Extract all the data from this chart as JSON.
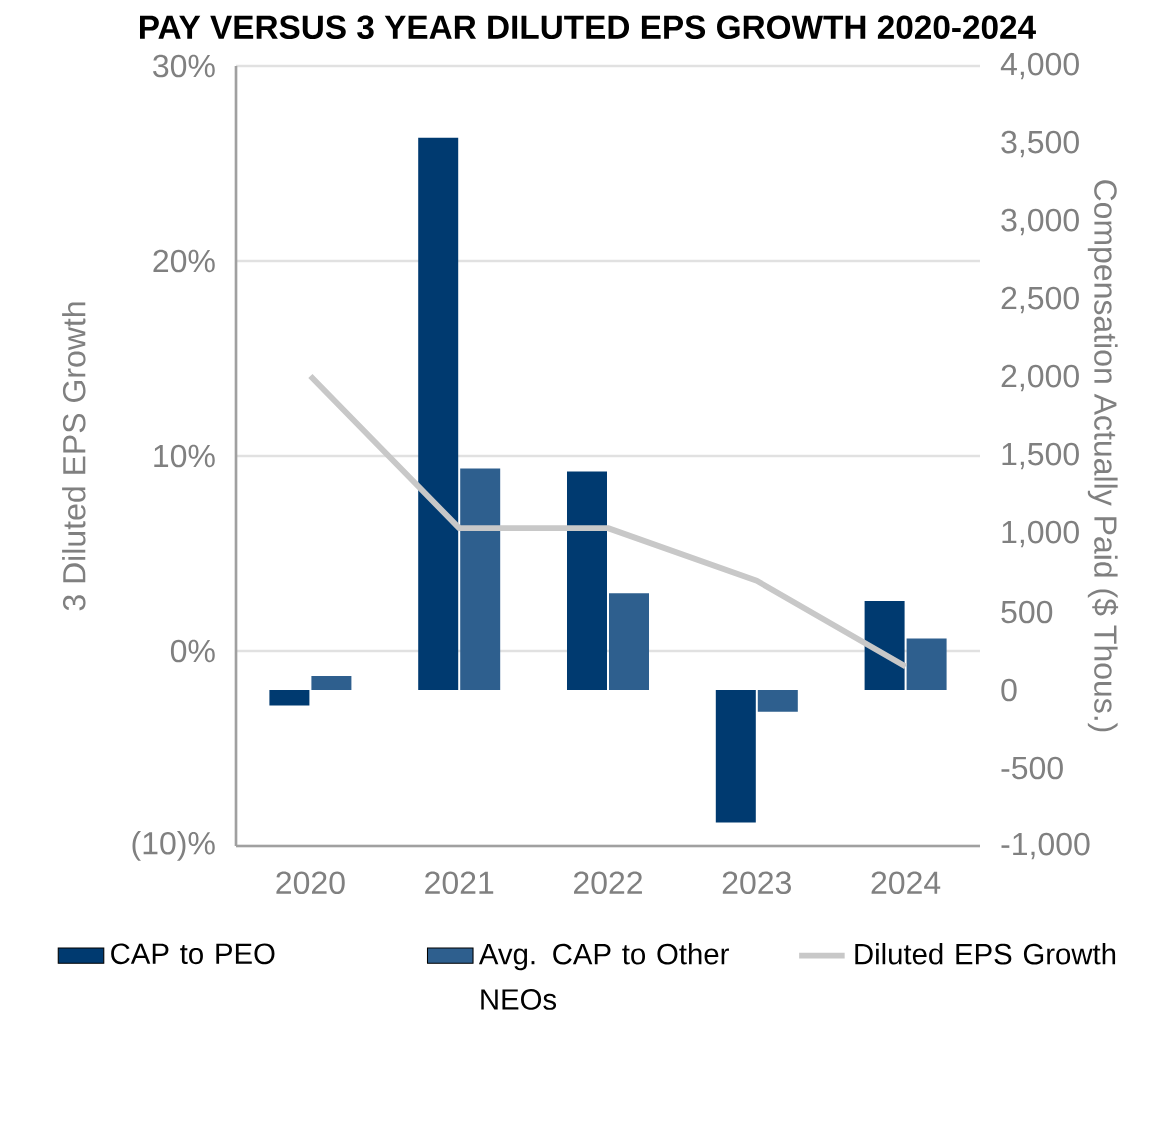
{
  "chart_data": {
    "type": "bar",
    "title": "PAY VERSUS 3 YEAR DILUTED EPS GROWTH 2020-2024",
    "categories": [
      "2020",
      "2021",
      "2022",
      "2023",
      "2024"
    ],
    "series": [
      {
        "name": "CAP to PEO",
        "color": "#003a70",
        "axis": "y2",
        "values": [
          -100,
          3540,
          1400,
          -850,
          570
        ]
      },
      {
        "name": "Avg. CAP to Other NEOs",
        "color": "#2e5f8e",
        "axis": "y2",
        "values": [
          90,
          1420,
          620,
          -140,
          330
        ]
      },
      {
        "name": "Diluted EPS Growth",
        "color": "#c8c8c8",
        "type": "line",
        "axis": "y",
        "values": [
          14.1,
          6.3,
          6.3,
          3.6,
          -0.8
        ]
      }
    ],
    "ylabel": "3 Diluted EPS Growth",
    "y2label": "Compensation Actually Paid ($ Thous.)",
    "ylim": [
      -10,
      30
    ],
    "yticks": [
      {
        "value": -10,
        "label": "(10)%"
      },
      {
        "value": 0,
        "label": "0%"
      },
      {
        "value": 10,
        "label": "10%"
      },
      {
        "value": 20,
        "label": "20%"
      },
      {
        "value": 30,
        "label": "30%"
      }
    ],
    "y2lim": [
      -1000,
      4000
    ],
    "y2ticks": [
      {
        "value": -1000,
        "label": "-1,000"
      },
      -500,
      0,
      500,
      {
        "value": 1000,
        "label": "1,000"
      },
      {
        "value": 1500,
        "label": "1,500"
      },
      {
        "value": 2000,
        "label": "2,000"
      },
      {
        "value": 2500,
        "label": "2,500"
      },
      {
        "value": 3000,
        "label": "3,000"
      },
      {
        "value": 3500,
        "label": "3,500"
      },
      {
        "value": 4000,
        "label": "4,000"
      }
    ],
    "grid": "y",
    "legend": "bottom",
    "marker": "none",
    "line_style": "solid"
  }
}
